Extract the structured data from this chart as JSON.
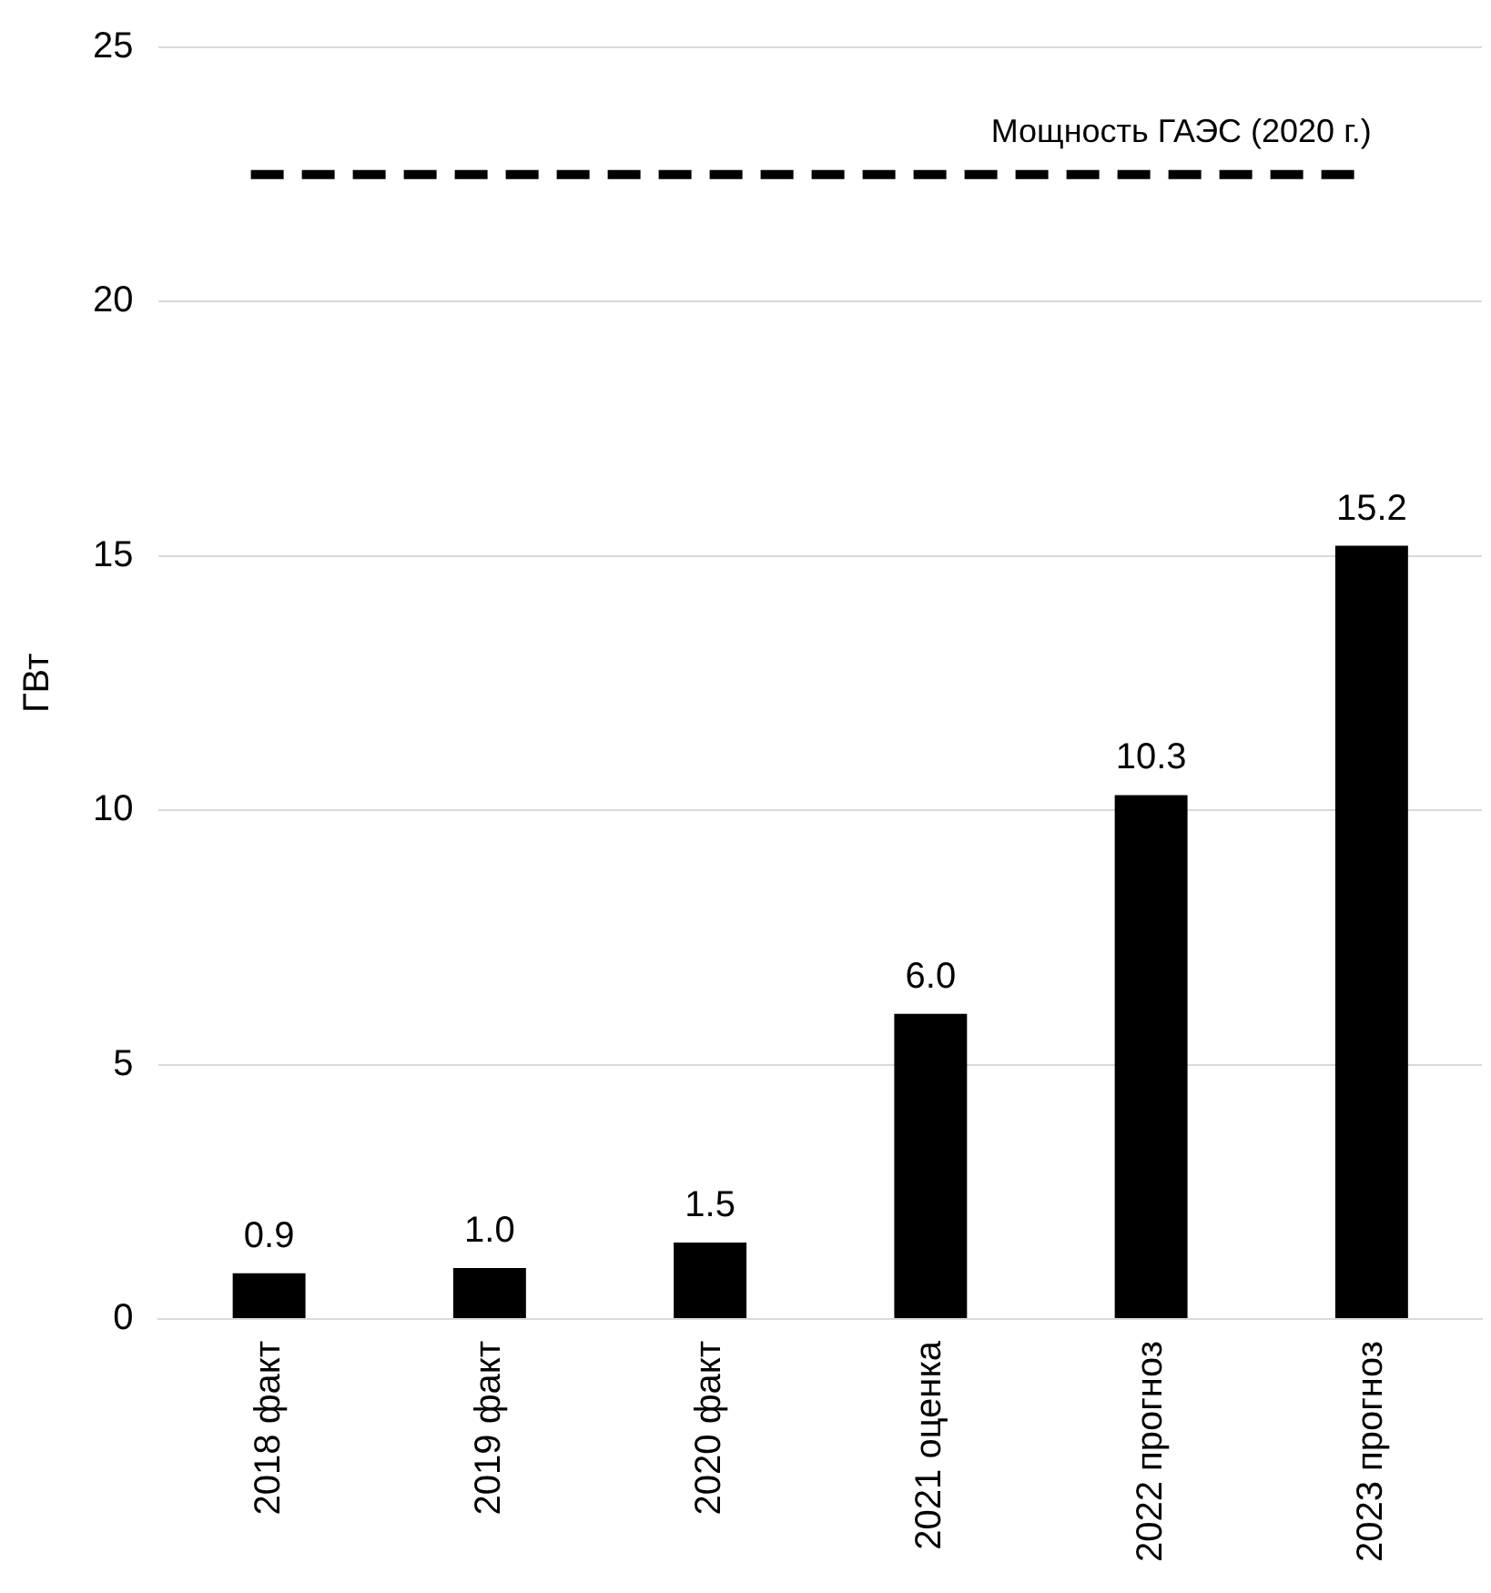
{
  "chart_data": {
    "type": "bar",
    "ylabel": "ГВт",
    "categories": [
      "2018 факт",
      "2019 факт",
      "2020 факт",
      "2021 оценка",
      "2022 прогноз",
      "2023 прогноз"
    ],
    "values": [
      0.9,
      1.0,
      1.5,
      6.0,
      10.3,
      15.2
    ],
    "color": "#000000",
    "ylim": [
      0,
      25
    ],
    "yticks": [
      0,
      5,
      10,
      15,
      20,
      25
    ],
    "value_labels": [
      "0.9",
      "1.0",
      "1.5",
      "6.0",
      "10.3",
      "15.2"
    ],
    "grid": "y",
    "legend": false,
    "ref_lines": [
      {
        "axis": "y",
        "value": 22.5,
        "label": "Мощность ГАЭС (2020 г.)",
        "color": "#000000",
        "line_style": "dashed"
      }
    ]
  }
}
